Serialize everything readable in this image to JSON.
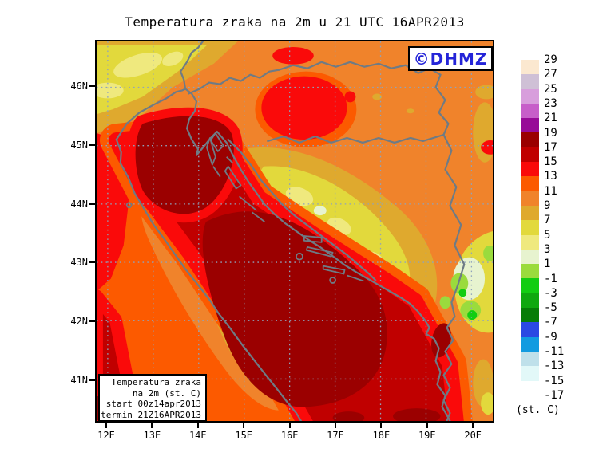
{
  "title": "Temperatura zraka na 2m u 21 UTC 16APR2013",
  "watermark": {
    "label": "©DHMZ",
    "color": "#2424D8"
  },
  "map": {
    "info_box": {
      "lines": [
        "Temperatura zraka",
        "na 2m (st. C)",
        "start 00z14apr2013",
        "termin 21Z16APR2013"
      ]
    }
  },
  "axes": {
    "lat": [
      "46N",
      "45N",
      "44N",
      "43N",
      "42N",
      "41N"
    ],
    "lon": [
      "12E",
      "13E",
      "14E",
      "15E",
      "16E",
      "17E",
      "18E",
      "19E",
      "20E"
    ]
  },
  "legend": {
    "unit": "(st. C)",
    "levels": [
      "29",
      "27",
      "25",
      "23",
      "21",
      "19",
      "17",
      "15",
      "13",
      "11",
      "9",
      "7",
      "5",
      "3",
      "1",
      "-1",
      "-3",
      "-5",
      "-7",
      "-9",
      "-11",
      "-13",
      "-15",
      "-17"
    ],
    "colors": [
      "#FBE8D0",
      "#CFC0D6",
      "#D89EDC",
      "#C75FC9",
      "#970B97",
      "#9A0000",
      "#C00000",
      "#FA0A0A",
      "#FC5A00",
      "#F0832B",
      "#DFA92E",
      "#E2D93C",
      "#EFE97E",
      "#E7F3CF",
      "#9ADB3D",
      "#12CD12",
      "#0FA80F",
      "#077D07",
      "#2B49E3",
      "#129BE0",
      "#BFE0EA",
      "#E2F8F8",
      "#FFFFFF"
    ]
  }
}
